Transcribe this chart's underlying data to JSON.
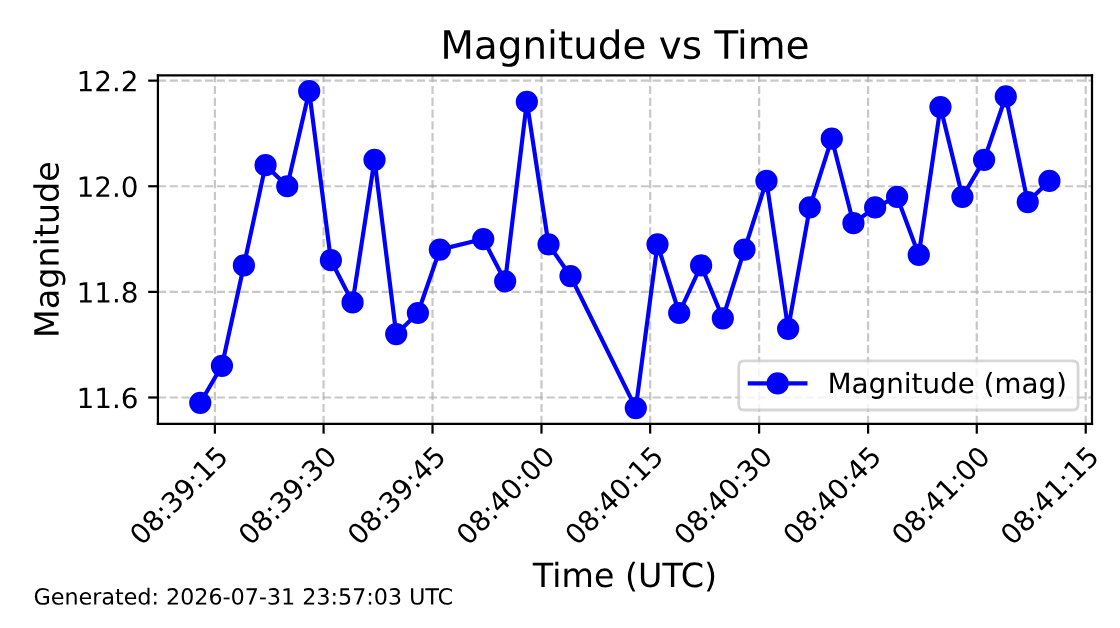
{
  "chart_data": {
    "type": "line",
    "title": "Magnitude vs Time",
    "xlabel": "Time (UTC)",
    "ylabel": "Magnitude",
    "x": [
      8.65361,
      8.65444,
      8.65528,
      8.65611,
      8.65694,
      8.65778,
      8.65861,
      8.65944,
      8.66028,
      8.66111,
      8.66194,
      8.66278,
      8.66444,
      8.66528,
      8.66611,
      8.66694,
      8.66778,
      8.67028,
      8.67111,
      8.67194,
      8.67278,
      8.67361,
      8.67444,
      8.67528,
      8.67611,
      8.67694,
      8.67778,
      8.67861,
      8.67944,
      8.68028,
      8.68111,
      8.68194,
      8.68278,
      8.68361,
      8.68444,
      8.68528,
      8.68611
    ],
    "series": [
      {
        "name": "Magnitude (mag)",
        "color": "#0000ff",
        "values": [
          11.59,
          11.66,
          11.85,
          12.04,
          12.0,
          12.18,
          11.86,
          11.78,
          12.05,
          11.72,
          11.76,
          11.88,
          11.9,
          11.82,
          12.16,
          11.89,
          11.83,
          11.58,
          11.89,
          11.76,
          11.85,
          11.75,
          11.88,
          12.01,
          11.73,
          11.96,
          12.09,
          11.93,
          11.96,
          11.98,
          11.87,
          12.15,
          11.98,
          12.05,
          12.17,
          11.97,
          12.01
        ]
      }
    ],
    "xlim": [
      8.65199,
      8.68774
    ],
    "xticks": [
      {
        "value": 8.65417,
        "label": "08:39:15"
      },
      {
        "value": 8.65833,
        "label": "08:39:30"
      },
      {
        "value": 8.6625,
        "label": "08:39:45"
      },
      {
        "value": 8.66667,
        "label": "08:40:00"
      },
      {
        "value": 8.67083,
        "label": "08:40:15"
      },
      {
        "value": 8.675,
        "label": "08:40:30"
      },
      {
        "value": 8.67917,
        "label": "08:40:45"
      },
      {
        "value": 8.68333,
        "label": "08:41:00"
      },
      {
        "value": 8.6875,
        "label": "08:41:15"
      }
    ],
    "ylim": [
      11.55,
      12.21
    ],
    "yticks": [
      {
        "value": 11.6,
        "label": "11.6"
      },
      {
        "value": 11.8,
        "label": "11.8"
      },
      {
        "value": 12.0,
        "label": "12.0"
      },
      {
        "value": 12.2,
        "label": "12.2"
      }
    ],
    "grid": true,
    "legend": "bottom right",
    "marker": "circle",
    "line_style": "solid",
    "annotations": [
      "Generated: 2026-07-31 23:57:03 UTC"
    ]
  }
}
